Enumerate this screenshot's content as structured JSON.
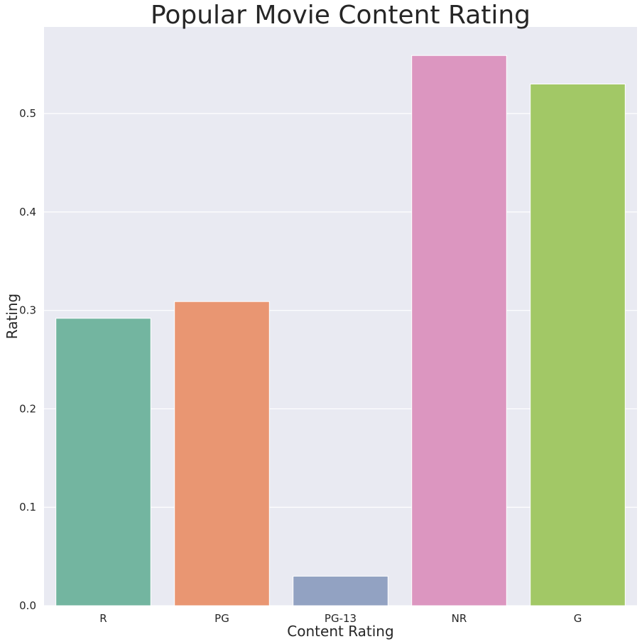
{
  "chart_data": {
    "type": "bar",
    "title": "Popular Movie Content Rating",
    "xlabel": "Content Rating",
    "ylabel": "Rating",
    "categories": [
      "R",
      "PG",
      "PG-13",
      "NR",
      "G"
    ],
    "values": [
      0.292,
      0.309,
      0.03,
      0.559,
      0.53
    ],
    "colors": [
      "#73b5a0",
      "#e99672",
      "#92a2c2",
      "#dc96c0",
      "#a2c866"
    ],
    "ylim": [
      0,
      0.588
    ],
    "yticks": [
      0.0,
      0.1,
      0.2,
      0.3,
      0.4,
      0.5
    ],
    "ytick_labels": [
      "0.0",
      "0.1",
      "0.2",
      "0.3",
      "0.4",
      "0.5"
    ],
    "grid": true,
    "background": "#e9eaf2",
    "grid_color": "#ffffff"
  }
}
